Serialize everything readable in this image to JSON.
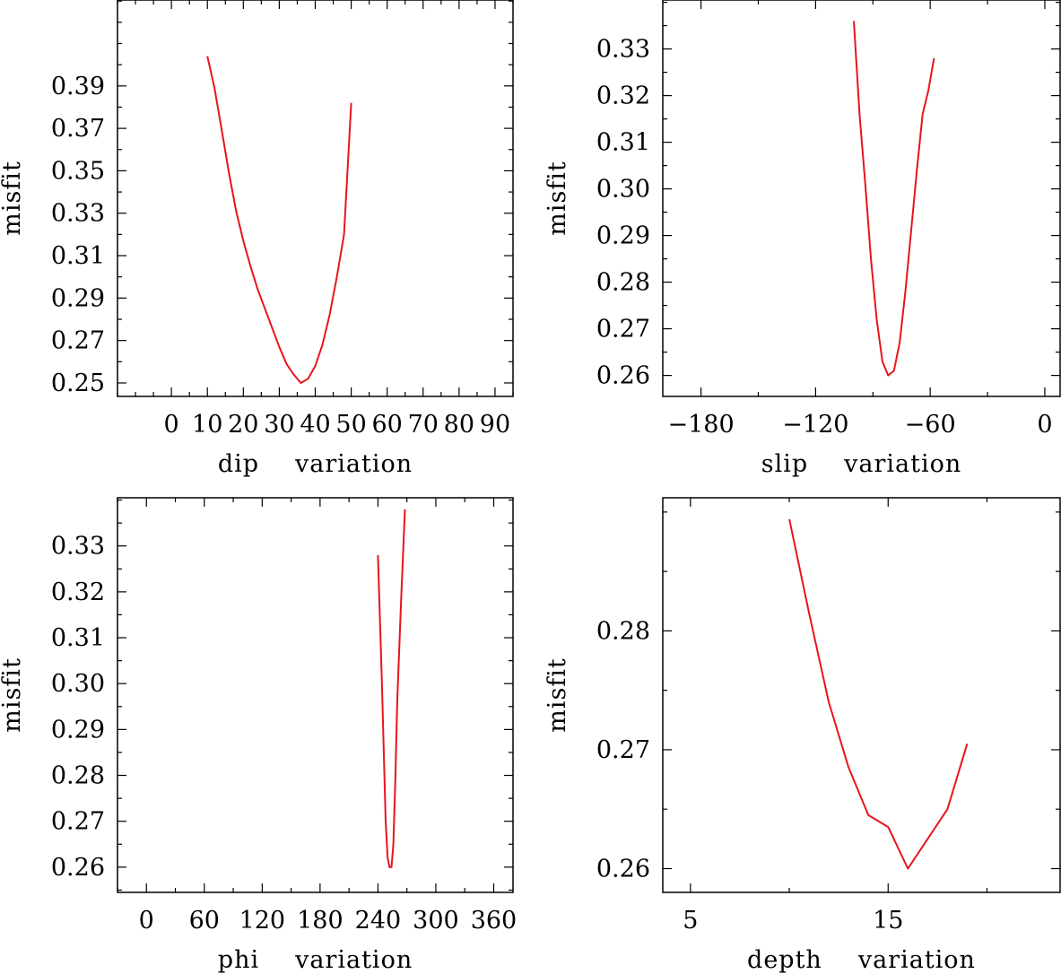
{
  "chart_data": [
    {
      "type": "line",
      "title": "",
      "xlabel": "dip variation",
      "ylabel": "misfit",
      "xlim": [
        -15,
        95
      ],
      "ylim": [
        0.24365,
        0.4305
      ],
      "xticks": [
        0,
        10,
        20,
        30,
        40,
        50,
        60,
        70,
        80,
        90
      ],
      "xtick_labels": [
        "0",
        "10",
        "20",
        "30",
        "40",
        "50",
        "60",
        "70",
        "80",
        "90"
      ],
      "yticks": [
        0.25,
        0.27,
        0.29,
        0.31,
        0.33,
        0.35,
        0.37,
        0.39
      ],
      "ytick_labels": [
        "0.25",
        "0.27",
        "0.29",
        "0.31",
        "0.33",
        "0.35",
        "0.37",
        "0.39"
      ],
      "series": [
        {
          "name": "misfit",
          "color": "#e8141c",
          "x": [
            10,
            12,
            14,
            16,
            18,
            20,
            22,
            24,
            26,
            28,
            30,
            32,
            34,
            36,
            38,
            40,
            42,
            44,
            46,
            48,
            50
          ],
          "y": [
            0.404,
            0.389,
            0.369,
            0.349,
            0.331,
            0.317,
            0.305,
            0.294,
            0.285,
            0.276,
            0.267,
            0.259,
            0.254,
            0.25,
            0.252,
            0.258,
            0.268,
            0.282,
            0.3,
            0.32,
            0.382
          ]
        }
      ]
    },
    {
      "type": "line",
      "title": "",
      "xlabel": "slip variation",
      "ylabel": "misfit",
      "xlim": [
        -200,
        8
      ],
      "ylim": [
        0.2555,
        0.3405
      ],
      "xticks": [
        -180,
        -120,
        -60,
        0
      ],
      "xtick_labels": [
        "−180",
        "−120",
        "−60",
        "0"
      ],
      "yticks": [
        0.26,
        0.27,
        0.28,
        0.29,
        0.3,
        0.31,
        0.32,
        0.33
      ],
      "ytick_labels": [
        "0.26",
        "0.27",
        "0.28",
        "0.29",
        "0.30",
        "0.31",
        "0.32",
        "0.33"
      ],
      "series": [
        {
          "name": "misfit",
          "color": "#e8141c",
          "x": [
            -100,
            -97,
            -94,
            -91,
            -88,
            -85,
            -82,
            -79,
            -76,
            -73,
            -70,
            -67,
            -64,
            -61,
            -58
          ],
          "y": [
            0.336,
            0.316,
            0.301,
            0.285,
            0.272,
            0.263,
            0.26,
            0.261,
            0.267,
            0.278,
            0.291,
            0.304,
            0.316,
            0.321,
            0.328
          ]
        }
      ]
    },
    {
      "type": "line",
      "title": "",
      "xlabel": "phi variation",
      "ylabel": "misfit",
      "xlim": [
        -30,
        380
      ],
      "ylim": [
        0.2545,
        0.3405
      ],
      "xticks": [
        0,
        60,
        120,
        180,
        240,
        300,
        360
      ],
      "xtick_labels": [
        "0",
        "60",
        "120",
        "180",
        "240",
        "300",
        "360"
      ],
      "yticks": [
        0.26,
        0.27,
        0.28,
        0.29,
        0.3,
        0.31,
        0.32,
        0.33
      ],
      "ytick_labels": [
        "0.26",
        "0.27",
        "0.28",
        "0.29",
        "0.30",
        "0.31",
        "0.32",
        "0.33"
      ],
      "series": [
        {
          "name": "misfit",
          "color": "#e8141c",
          "x": [
            240,
            244,
            248,
            250,
            252,
            254,
            256,
            258,
            260,
            264,
            268
          ],
          "y": [
            0.328,
            0.301,
            0.27,
            0.262,
            0.26,
            0.26,
            0.265,
            0.279,
            0.296,
            0.318,
            0.338
          ]
        }
      ]
    },
    {
      "type": "line",
      "title": "",
      "xlabel": "depth variation",
      "ylabel": "misfit",
      "xlim": [
        3.6,
        23.7
      ],
      "ylim": [
        0.258,
        0.2912
      ],
      "xticks": [
        5,
        15
      ],
      "xtick_labels": [
        "5",
        "15"
      ],
      "yticks": [
        0.26,
        0.27,
        0.28
      ],
      "ytick_labels": [
        "0.26",
        "0.27",
        "0.28"
      ],
      "series": [
        {
          "name": "misfit",
          "color": "#e8141c",
          "x": [
            10,
            11,
            12,
            13,
            14,
            15,
            16,
            17,
            18,
            19
          ],
          "y": [
            0.2894,
            0.2815,
            0.274,
            0.2685,
            0.2645,
            0.2635,
            0.26,
            0.2625,
            0.265,
            0.2705
          ]
        }
      ]
    }
  ]
}
